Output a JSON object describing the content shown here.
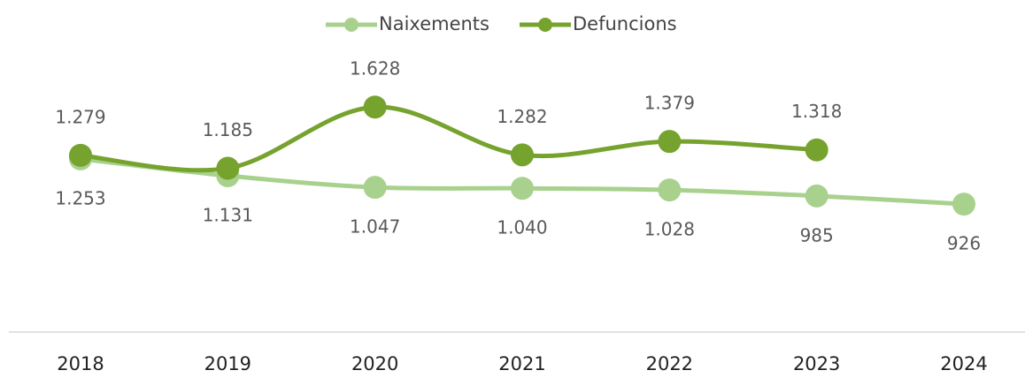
{
  "chart_data": {
    "type": "line",
    "categories": [
      "2018",
      "2019",
      "2020",
      "2021",
      "2022",
      "2023",
      "2024"
    ],
    "series": [
      {
        "name": "Naixements",
        "color": "#a9d18e",
        "values": [
          1253,
          1131,
          1047,
          1040,
          1028,
          985,
          926
        ],
        "value_labels": [
          "1.253",
          "1.131",
          "1.047",
          "1.040",
          "1.028",
          "985",
          "926"
        ]
      },
      {
        "name": "Defuncions",
        "color": "#76a32e",
        "values": [
          1279,
          1185,
          1628,
          1282,
          1379,
          1318,
          null
        ],
        "value_labels": [
          "1.279",
          "1.185",
          "1.628",
          "1.282",
          "1.379",
          "1.318",
          null
        ]
      }
    ],
    "ylim": [
      0,
      2000
    ],
    "smooth": true,
    "legend": "top"
  }
}
